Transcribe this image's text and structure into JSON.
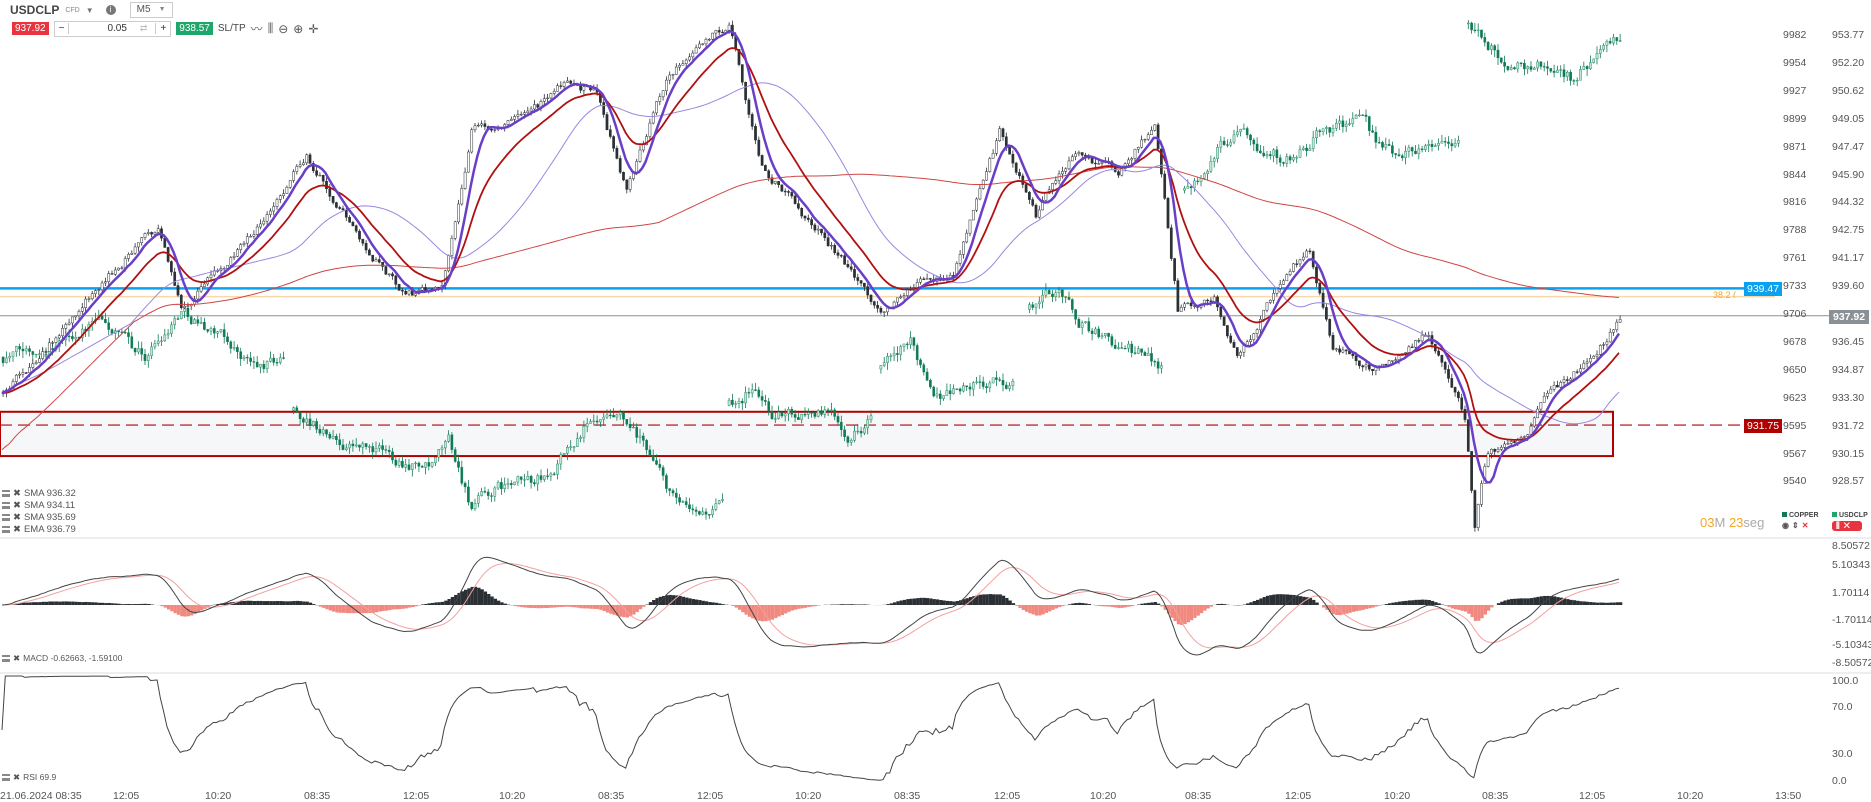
{
  "toolbar": {
    "symbol": "USDCLP",
    "symbol_type": "CFD",
    "timeframe": "M5",
    "sell_price": "937.92",
    "buy_price": "938.57",
    "volume": "0.05",
    "minus": "−",
    "plus": "+",
    "sltp": "SL/TP"
  },
  "price_axis_left": [
    "9982",
    "9954",
    "9927",
    "9899",
    "9871",
    "9844",
    "9816",
    "9788",
    "9761",
    "9733",
    "9706",
    "9678",
    "9650",
    "9623",
    "9595",
    "9567",
    "9540"
  ],
  "price_axis_right": [
    "953.77",
    "952.20",
    "950.62",
    "949.05",
    "947.47",
    "945.90",
    "944.32",
    "942.75",
    "941.17",
    "939.60",
    "936.45",
    "934.87",
    "933.30",
    "931.72",
    "930.15",
    "928.57"
  ],
  "macd_axis": [
    "8.50572",
    "5.10343",
    "1.70114",
    "-1.70114",
    "-5.10343",
    "-8.50572"
  ],
  "rsi_axis": [
    "100.0",
    "70.0",
    "30.0",
    "0.0"
  ],
  "time_axis": [
    "21.06.2024 08:35",
    "12:05",
    "10:20",
    "08:35",
    "12:05",
    "10:20",
    "08:35",
    "12:05",
    "10:20",
    "08:35",
    "12:05",
    "10:20",
    "08:35",
    "12:05",
    "10:20",
    "08:35",
    "12:05",
    "10:20",
    "13:50"
  ],
  "tags": {
    "current_price": "937.92",
    "blue_level": "939.47",
    "fib_label": "38.2 (",
    "red_level": "931.75"
  },
  "indicators": {
    "sma1": "SMA 936.32",
    "sma2": "SMA 934.11",
    "sma3": "SMA 935.69",
    "ema": "EMA 936.79",
    "macd": "MACD -0.62663, -1.59100",
    "rsi": "RSI 69.9"
  },
  "timer": {
    "minutes": "03",
    "m_unit": "M",
    "seconds": "23",
    "s_unit": "seg"
  },
  "series_legend": {
    "copper": "COPPER",
    "usdclp": "USDCLP"
  },
  "colors": {
    "usdclp": "#2b3035",
    "copper": "#0f7b55",
    "blue_line": "#0aa1f0",
    "red_zone": "#b00000",
    "sell": "#e8343f",
    "buy": "#1fa66a"
  },
  "chart_data": {
    "type": "candlestick",
    "x_unit": "5-minute bar index",
    "usdclp_keypoints": [
      [
        0,
        933.56
      ],
      [
        11,
        935.58
      ],
      [
        29,
        939.61
      ],
      [
        47,
        942.97
      ],
      [
        54,
        938.27
      ],
      [
        72,
        941.63
      ],
      [
        92,
        947.01
      ],
      [
        108,
        942.3
      ],
      [
        122,
        938.94
      ],
      [
        133,
        939.61
      ],
      [
        142,
        948.35
      ],
      [
        158,
        949.02
      ],
      [
        171,
        951.38
      ],
      [
        180,
        950.37
      ],
      [
        189,
        944.99
      ],
      [
        202,
        951.71
      ],
      [
        220,
        954.4
      ],
      [
        230,
        946.33
      ],
      [
        252,
        941.63
      ],
      [
        266,
        938.27
      ],
      [
        277,
        939.61
      ],
      [
        288,
        940.28
      ],
      [
        302,
        948.35
      ],
      [
        313,
        943.64
      ],
      [
        324,
        947.01
      ],
      [
        338,
        946.0
      ],
      [
        349,
        948.69
      ],
      [
        356,
        938.27
      ],
      [
        367,
        938.94
      ],
      [
        374,
        935.58
      ],
      [
        389,
        940.28
      ],
      [
        396,
        941.63
      ],
      [
        403,
        936.25
      ],
      [
        414,
        934.9
      ],
      [
        432,
        936.92
      ],
      [
        443,
        932.22
      ],
      [
        446,
        926.16
      ],
      [
        450,
        930.2
      ],
      [
        461,
        930.87
      ],
      [
        468,
        933.56
      ],
      [
        482,
        935.58
      ],
      [
        490,
        937.93
      ]
    ],
    "copper_segments": [
      [
        [
          0,
          9663
        ],
        [
          14,
          9674
        ],
        [
          29,
          9698
        ],
        [
          43,
          9663
        ],
        [
          54,
          9710
        ],
        [
          65,
          9686
        ],
        [
          77,
          9651
        ],
        [
          85,
          9663
        ]
      ],
      [
        [
          88,
          9610
        ],
        [
          101,
          9580
        ],
        [
          115,
          9568
        ],
        [
          130,
          9551
        ],
        [
          135,
          9580
        ],
        [
          142,
          9515
        ],
        [
          151,
          9533
        ],
        [
          166,
          9545
        ],
        [
          176,
          9592
        ],
        [
          187,
          9598
        ],
        [
          196,
          9568
        ],
        [
          203,
          9521
        ],
        [
          209,
          9503
        ],
        [
          218,
          9515
        ]
      ],
      [
        [
          220,
          9615
        ],
        [
          227,
          9633
        ],
        [
          234,
          9604
        ],
        [
          245,
          9610
        ],
        [
          252,
          9604
        ],
        [
          257,
          9586
        ],
        [
          263,
          9604
        ]
      ],
      [
        [
          266,
          9651
        ],
        [
          275,
          9674
        ],
        [
          283,
          9627
        ],
        [
          292,
          9633
        ],
        [
          306,
          9639
        ]
      ],
      [
        [
          311,
          9710
        ],
        [
          320,
          9733
        ],
        [
          326,
          9698
        ],
        [
          338,
          9674
        ],
        [
          351,
          9657
        ]
      ],
      [
        [
          358,
          9828
        ],
        [
          367,
          9863
        ],
        [
          376,
          9899
        ],
        [
          382,
          9869
        ],
        [
          392,
          9857
        ],
        [
          400,
          9887
        ],
        [
          410,
          9899
        ],
        [
          421,
          9863
        ],
        [
          432,
          9875
        ],
        [
          441,
          9877
        ]
      ],
      [
        [
          444,
          9993
        ],
        [
          450,
          9970
        ],
        [
          457,
          9952
        ],
        [
          468,
          9952
        ],
        [
          475,
          9940
        ],
        [
          484,
          9964
        ],
        [
          490,
          9975
        ]
      ]
    ],
    "levels": {
      "blue": 939.47,
      "current": 937.92,
      "red_dashed": 931.75,
      "zone": [
        930.0,
        932.5
      ],
      "fib_38_2": 939.0
    },
    "usdclp_range": [
      928.57,
      953.77
    ],
    "copper_range": [
      9540,
      9982
    ],
    "macd_range": [
      -8.50572,
      8.50572
    ],
    "rsi_range": [
      0,
      100
    ]
  }
}
